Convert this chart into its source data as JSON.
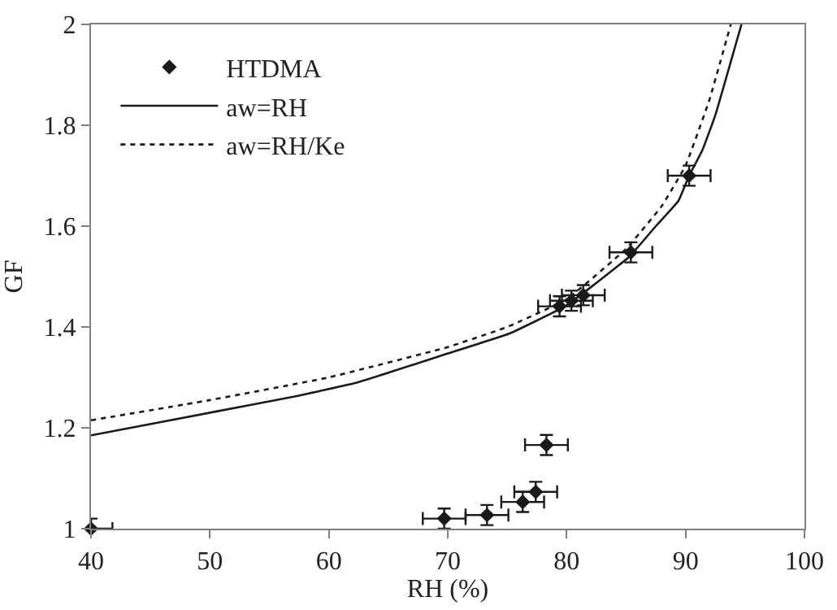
{
  "chart_data": {
    "type": "scatter",
    "xlabel": "RH (%)",
    "ylabel": "GF",
    "xlim": [
      40,
      100
    ],
    "xticks": [
      40,
      50,
      60,
      70,
      80,
      90,
      100
    ],
    "ylim": [
      1,
      2
    ],
    "yticks": [
      1,
      1.2,
      1.4,
      1.6,
      1.8,
      2
    ],
    "legend": "top left",
    "series": [
      {
        "name": "HTDMA",
        "color": "#1a1a1a",
        "marker": "diamond",
        "x": [
          40,
          69.7,
          73.3,
          76.3,
          77.4,
          78.3,
          79.4,
          80.4,
          81.4,
          85.4,
          90.3
        ],
        "values": [
          1.0,
          1.02,
          1.027,
          1.053,
          1.073,
          1.166,
          1.441,
          1.452,
          1.463,
          1.548,
          1.7
        ],
        "errors": [
          0.02,
          0.02,
          0.02,
          0.02,
          0.02,
          0.02,
          0.02,
          0.02,
          0.02,
          0.02,
          0.02
        ],
        "xerrors": [
          1.8,
          1.8,
          1.8,
          1.8,
          1.8,
          1.8,
          1.8,
          1.8,
          1.8,
          1.8,
          1.8
        ]
      },
      {
        "name": "aw=RH",
        "type": "line",
        "color": "#1a1a1a",
        "line_style": "solid",
        "x": [
          40,
          50,
          57.3,
          62.4,
          69.7,
          75.2,
          79.8,
          82.1,
          85.3,
          87.5,
          89.4,
          90.3,
          91.4,
          92.5,
          94.7
        ],
        "values": [
          1.185,
          1.23,
          1.263,
          1.29,
          1.345,
          1.387,
          1.44,
          1.48,
          1.54,
          1.6,
          1.65,
          1.7,
          1.75,
          1.82,
          2.0
        ]
      },
      {
        "name": "aw=RH/Ke",
        "type": "line",
        "color": "#1a1a1a",
        "line_style": "dotted",
        "x": [
          40,
          50,
          60,
          70,
          75,
          80,
          85,
          88,
          90,
          92,
          93.8
        ],
        "values": [
          1.215,
          1.255,
          1.3,
          1.36,
          1.4,
          1.455,
          1.555,
          1.64,
          1.72,
          1.85,
          2.0
        ]
      }
    ]
  }
}
